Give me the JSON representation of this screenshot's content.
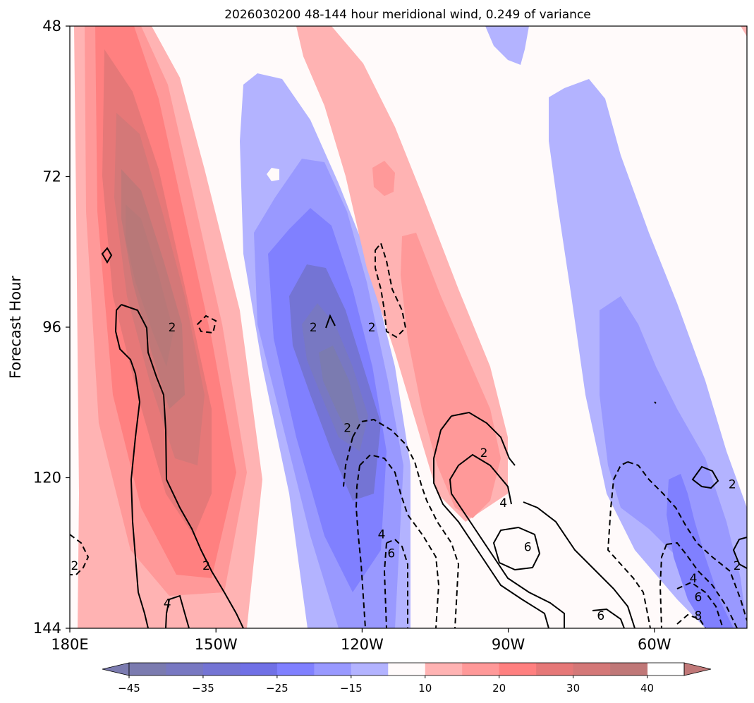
{
  "chart_data": {
    "type": "filled-contour",
    "title": "2026030200 48-144 hour meridional wind, 0.249 of variance",
    "xlabel": "",
    "ylabel": "Forecast Hour",
    "x_ticks": [
      {
        "value": 180,
        "label": "180E"
      },
      {
        "value": 150,
        "label": "150W"
      },
      {
        "value": 120,
        "label": "120W"
      },
      {
        "value": 90,
        "label": "90W"
      },
      {
        "value": 60,
        "label": "60W"
      }
    ],
    "y_ticks": [
      {
        "value": 48,
        "label": "48"
      },
      {
        "value": 72,
        "label": "72"
      },
      {
        "value": 96,
        "label": "96"
      },
      {
        "value": 120,
        "label": "120"
      },
      {
        "value": 144,
        "label": "144"
      }
    ],
    "xlim": [
      180,
      41
    ],
    "ylim": [
      48,
      144
    ],
    "colorbar": {
      "levels": [
        -45,
        -40,
        -35,
        -30,
        -25,
        -20,
        -15,
        -10,
        10,
        15,
        20,
        25,
        30,
        35,
        40,
        45
      ],
      "tick_values": [
        -45,
        -35,
        -25,
        -15,
        10,
        20,
        30,
        40
      ],
      "tick_labels": [
        "−45",
        "−35",
        "−25",
        "−15",
        "10",
        "20",
        "30",
        "40"
      ],
      "colors": [
        "#7b7bb0",
        "#7878c2",
        "#7474d4",
        "#7070e6",
        "#8080ff",
        "#9999ff",
        "#b3b3ff",
        "#fffafa",
        "#ffb3b3",
        "#ff9999",
        "#ff8080",
        "#e67878",
        "#d47878",
        "#c07878"
      ],
      "extend_min_color": "#7b7bb0",
      "extend_max_color": "#c07878"
    },
    "contour_labels": [
      {
        "text": "2",
        "lon": 159,
        "hour": 96
      },
      {
        "text": "2",
        "lon": 130,
        "hour": 96
      },
      {
        "text": "2",
        "lon": 118,
        "hour": 96
      },
      {
        "text": "2",
        "lon": 123,
        "hour": 112
      },
      {
        "text": "2",
        "lon": 95,
        "hour": 116
      },
      {
        "text": "4",
        "lon": 91,
        "hour": 124
      },
      {
        "text": "4",
        "lon": 116,
        "hour": 129
      },
      {
        "text": "6",
        "lon": 114,
        "hour": 132
      },
      {
        "text": "6",
        "lon": 86,
        "hour": 131
      },
      {
        "text": "2",
        "lon": 179,
        "hour": 134
      },
      {
        "text": "2",
        "lon": 152,
        "hour": 134
      },
      {
        "text": "4",
        "lon": 160,
        "hour": 140
      },
      {
        "text": "6",
        "lon": 71,
        "hour": 142
      },
      {
        "text": "2",
        "lon": 44,
        "hour": 121
      },
      {
        "text": "4",
        "lon": 52,
        "hour": 136
      },
      {
        "text": "6",
        "lon": 51,
        "hour": 139
      },
      {
        "text": "8",
        "lon": 51,
        "hour": 142
      },
      {
        "text": "2",
        "lon": 43,
        "hour": 134
      }
    ]
  }
}
